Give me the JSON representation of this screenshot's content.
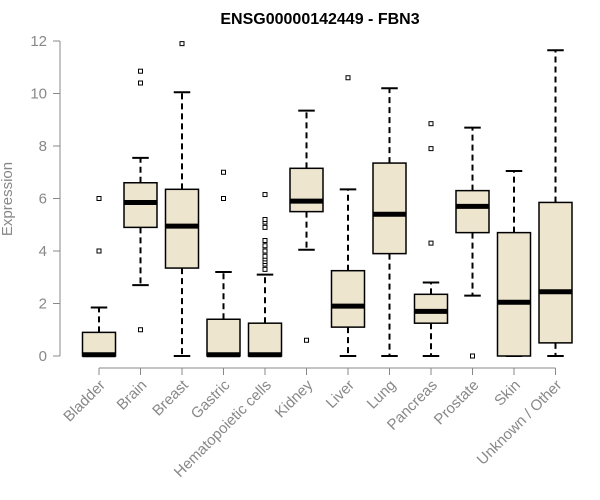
{
  "chart_data": {
    "type": "box",
    "title": "ENSG00000142449 - FBN3",
    "xlabel": "",
    "ylabel": "Expression",
    "ylim": [
      0,
      12
    ],
    "yticks": [
      0,
      2,
      4,
      6,
      8,
      10,
      12
    ],
    "box_fill": "#EDE5CE",
    "box_stroke": "#000000",
    "categories": [
      "Bladder",
      "Brain",
      "Breast",
      "Gastric",
      "Hematopoietic cells",
      "Kidney",
      "Liver",
      "Lung",
      "Pancreas",
      "Prostate",
      "Skin",
      "Unknown / Other"
    ],
    "boxes": [
      {
        "whisker_low": 0,
        "q1": 0,
        "median": 0.05,
        "q3": 0.9,
        "whisker_high": 1.85,
        "outliers": [
          4.0,
          6.0
        ]
      },
      {
        "whisker_low": 2.7,
        "q1": 4.9,
        "median": 5.85,
        "q3": 6.6,
        "whisker_high": 7.55,
        "outliers": [
          1.0,
          10.4,
          10.85
        ]
      },
      {
        "whisker_low": 0,
        "q1": 3.35,
        "median": 4.95,
        "q3": 6.35,
        "whisker_high": 10.05,
        "outliers": [
          11.9
        ]
      },
      {
        "whisker_low": 0,
        "q1": 0,
        "median": 0.05,
        "q3": 1.4,
        "whisker_high": 3.2,
        "outliers": [
          6.0,
          7.0
        ]
      },
      {
        "whisker_low": 0,
        "q1": 0,
        "median": 0.05,
        "q3": 1.25,
        "whisker_high": 3.1,
        "outliers": [
          3.3,
          3.5,
          3.6,
          3.7,
          3.8,
          4.0,
          4.2,
          4.4,
          4.9,
          5.1,
          5.2,
          6.15
        ]
      },
      {
        "whisker_low": 4.05,
        "q1": 5.5,
        "median": 5.9,
        "q3": 7.15,
        "whisker_high": 9.35,
        "outliers": [
          0.6
        ]
      },
      {
        "whisker_low": 0,
        "q1": 1.1,
        "median": 1.9,
        "q3": 3.25,
        "whisker_high": 6.35,
        "outliers": [
          10.6
        ]
      },
      {
        "whisker_low": 0,
        "q1": 3.9,
        "median": 5.4,
        "q3": 7.35,
        "whisker_high": 10.2,
        "outliers": []
      },
      {
        "whisker_low": 0,
        "q1": 1.25,
        "median": 1.7,
        "q3": 2.35,
        "whisker_high": 2.8,
        "outliers": [
          4.3,
          7.9,
          8.85
        ]
      },
      {
        "whisker_low": 2.3,
        "q1": 4.7,
        "median": 5.7,
        "q3": 6.3,
        "whisker_high": 8.7,
        "outliers": [
          0.0
        ]
      },
      {
        "whisker_low": 0,
        "q1": 0,
        "median": 2.05,
        "q3": 4.7,
        "whisker_high": 7.05,
        "outliers": []
      },
      {
        "whisker_low": 0,
        "q1": 0.5,
        "median": 2.45,
        "q3": 5.85,
        "whisker_high": 11.65,
        "outliers": []
      }
    ]
  }
}
